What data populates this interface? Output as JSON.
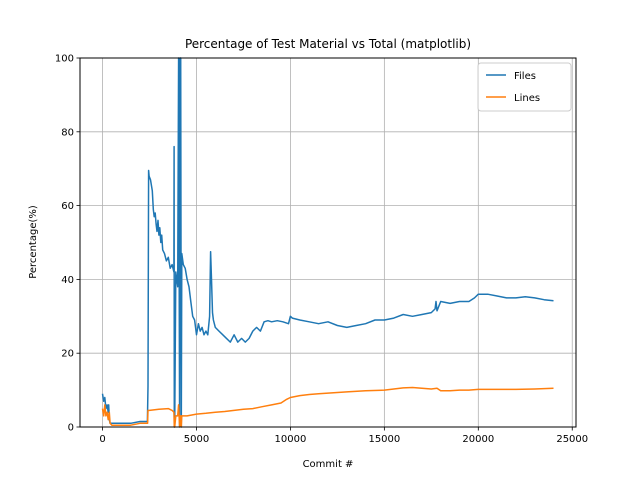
{
  "chart_data": {
    "type": "line",
    "title": "Percentage of Test Material vs Total (matplotlib)",
    "xlabel": "Commit #",
    "ylabel": "Percentage(%)",
    "xlim": [
      -1200,
      25200
    ],
    "ylim": [
      0,
      100
    ],
    "xticks": [
      0,
      5000,
      10000,
      15000,
      20000,
      25000
    ],
    "yticks": [
      0,
      20,
      40,
      60,
      80,
      100
    ],
    "grid": true,
    "legend_position": "top-right",
    "series": [
      {
        "name": "Files",
        "color": "#1f77b4",
        "x": [
          0,
          60,
          120,
          180,
          240,
          300,
          330,
          360,
          400,
          500,
          1000,
          1500,
          2000,
          2300,
          2390,
          2420,
          2450,
          2480,
          2550,
          2650,
          2700,
          2750,
          2800,
          2850,
          2900,
          2950,
          3000,
          3050,
          3100,
          3150,
          3200,
          3300,
          3400,
          3500,
          3600,
          3700,
          3800,
          3810,
          3820,
          3840,
          3900,
          4000,
          4050,
          4100,
          4130,
          4160,
          4190,
          4220,
          4300,
          4400,
          4500,
          4600,
          4700,
          4800,
          4900,
          5000,
          5100,
          5200,
          5300,
          5400,
          5500,
          5600,
          5700,
          5750,
          5800,
          5850,
          5900,
          6000,
          6200,
          6400,
          6600,
          6800,
          7000,
          7200,
          7400,
          7600,
          7800,
          8000,
          8200,
          8400,
          8600,
          8800,
          9000,
          9300,
          9600,
          9900,
          10000,
          10100,
          10500,
          11000,
          11500,
          12000,
          12500,
          13000,
          13500,
          14000,
          14500,
          15000,
          15500,
          16000,
          16500,
          17000,
          17500,
          17700,
          17750,
          17800,
          18000,
          18500,
          19000,
          19500,
          19800,
          20000,
          20500,
          21000,
          21500,
          22000,
          22500,
          23000,
          23500,
          24000
        ],
        "values": [
          9,
          7,
          8,
          5,
          6,
          4,
          6,
          2,
          1,
          1,
          1,
          1,
          1.5,
          1.5,
          1.5,
          11,
          69.5,
          68,
          67,
          64,
          59,
          57,
          58,
          55,
          53,
          56,
          52,
          54,
          50,
          52,
          48,
          47,
          45,
          46,
          43,
          44,
          42,
          76,
          0,
          0,
          42,
          38,
          100,
          0,
          100,
          100,
          0,
          47,
          44,
          43,
          40,
          38,
          34,
          30,
          29,
          25,
          28,
          26,
          27,
          25,
          26,
          25,
          30,
          47.5,
          40,
          31,
          29,
          27,
          26,
          25,
          24,
          23,
          25,
          23,
          24,
          23,
          24,
          26,
          27,
          26,
          28.5,
          28.8,
          28.5,
          28.8,
          28.5,
          28,
          30,
          29.5,
          29,
          28.5,
          28,
          28.5,
          27.5,
          27,
          27.5,
          28,
          29,
          29,
          29.5,
          30.5,
          30,
          30.5,
          31,
          32,
          34,
          31.5,
          34,
          33.5,
          34,
          34,
          35,
          36,
          36,
          35.5,
          35,
          35,
          35.3,
          35,
          34.5,
          34.2
        ],
        "width": 1.5
      },
      {
        "name": "Lines",
        "color": "#ff7f0e",
        "x": [
          0,
          60,
          120,
          180,
          240,
          300,
          360,
          400,
          500,
          1000,
          1500,
          2000,
          2300,
          2400,
          2420,
          2450,
          2500,
          3000,
          3500,
          3700,
          3800,
          3820,
          3840,
          3900,
          3950,
          4000,
          4050,
          4100,
          4130,
          4160,
          4190,
          4220,
          4500,
          5000,
          5500,
          6000,
          6500,
          7000,
          7500,
          8000,
          8500,
          9000,
          9500,
          9800,
          10000,
          10500,
          11000,
          11500,
          12000,
          13000,
          14000,
          15000,
          15500,
          16000,
          16500,
          17000,
          17500,
          17800,
          18000,
          18500,
          19000,
          19500,
          20000,
          21000,
          22000,
          23000,
          24000
        ],
        "values": [
          5,
          3,
          6,
          3,
          4,
          2,
          4,
          1,
          0.5,
          0.5,
          0.5,
          1,
          1,
          1,
          4.5,
          4.5,
          4.5,
          4.8,
          5,
          4.5,
          4,
          0,
          0,
          3,
          3,
          3,
          6,
          0,
          3,
          3,
          0,
          3,
          3,
          3.5,
          3.7,
          4,
          4.2,
          4.5,
          4.8,
          5,
          5.5,
          6,
          6.5,
          7.5,
          8,
          8.5,
          8.8,
          9,
          9.2,
          9.5,
          9.8,
          10,
          10.3,
          10.6,
          10.7,
          10.5,
          10.3,
          10.5,
          9.8,
          9.8,
          10,
          10,
          10.2,
          10.2,
          10.2,
          10.3,
          10.5
        ],
        "width": 1.5
      }
    ]
  }
}
